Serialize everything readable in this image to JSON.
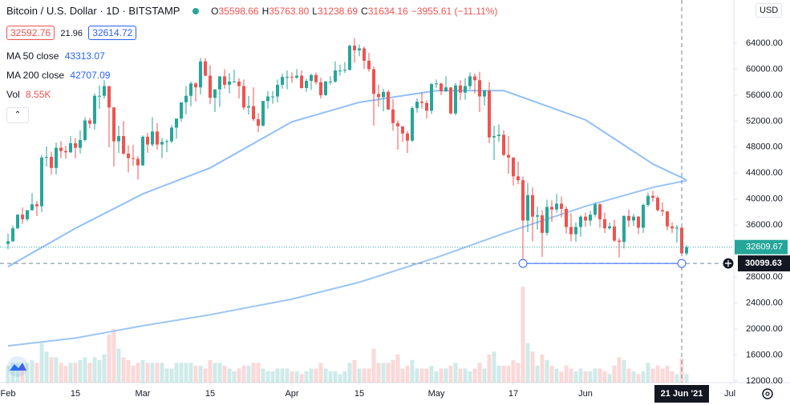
{
  "chart_data": {
    "type": "candlestick",
    "title": "Bitcoin / U.S. Dollar · 1D · BITSTAMP",
    "legend_ohlc": {
      "keys": [
        "O",
        "H",
        "L",
        "C"
      ],
      "labels": [
        "35598.66",
        "35763.80",
        "31238.69",
        "31634.16"
      ]
    },
    "legend_change": "−3955.61 (−11.11%)",
    "bid": 32592.76,
    "spread": 21.96,
    "ask": 32614.72,
    "volume_name": "Vol",
    "volume_label": "8.55K",
    "currency": "USD",
    "categories": [
      "2021-02-01",
      "2021-02-02",
      "2021-02-03",
      "2021-02-04",
      "2021-02-05",
      "2021-02-06",
      "2021-02-07",
      "2021-02-08",
      "2021-02-09",
      "2021-02-10",
      "2021-02-11",
      "2021-02-12",
      "2021-02-13",
      "2021-02-14",
      "2021-02-15",
      "2021-02-16",
      "2021-02-17",
      "2021-02-18",
      "2021-02-19",
      "2021-02-20",
      "2021-02-21",
      "2021-02-22",
      "2021-02-23",
      "2021-02-24",
      "2021-02-25",
      "2021-02-26",
      "2021-02-27",
      "2021-02-28",
      "2021-03-01",
      "2021-03-02",
      "2021-03-03",
      "2021-03-04",
      "2021-03-05",
      "2021-03-06",
      "2021-03-07",
      "2021-03-08",
      "2021-03-09",
      "2021-03-10",
      "2021-03-11",
      "2021-03-12",
      "2021-03-13",
      "2021-03-14",
      "2021-03-15",
      "2021-03-16",
      "2021-03-17",
      "2021-03-18",
      "2021-03-19",
      "2021-03-20",
      "2021-03-21",
      "2021-03-22",
      "2021-03-23",
      "2021-03-24",
      "2021-03-25",
      "2021-03-26",
      "2021-03-27",
      "2021-03-28",
      "2021-03-29",
      "2021-03-30",
      "2021-03-31",
      "2021-04-01",
      "2021-04-02",
      "2021-04-03",
      "2021-04-04",
      "2021-04-05",
      "2021-04-06",
      "2021-04-07",
      "2021-04-08",
      "2021-04-09",
      "2021-04-10",
      "2021-04-11",
      "2021-04-12",
      "2021-04-13",
      "2021-04-14",
      "2021-04-15",
      "2021-04-16",
      "2021-04-17",
      "2021-04-18",
      "2021-04-19",
      "2021-04-20",
      "2021-04-21",
      "2021-04-22",
      "2021-04-23",
      "2021-04-24",
      "2021-04-25",
      "2021-04-26",
      "2021-04-27",
      "2021-04-28",
      "2021-04-29",
      "2021-04-30",
      "2021-05-01",
      "2021-05-02",
      "2021-05-03",
      "2021-05-04",
      "2021-05-05",
      "2021-05-06",
      "2021-05-07",
      "2021-05-08",
      "2021-05-09",
      "2021-05-10",
      "2021-05-11",
      "2021-05-12",
      "2021-05-13",
      "2021-05-14",
      "2021-05-15",
      "2021-05-16",
      "2021-05-17",
      "2021-05-18",
      "2021-05-19",
      "2021-05-20",
      "2021-05-21",
      "2021-05-22",
      "2021-05-23",
      "2021-05-24",
      "2021-05-25",
      "2021-05-26",
      "2021-05-27",
      "2021-05-28",
      "2021-05-29",
      "2021-05-30",
      "2021-05-31",
      "2021-06-01",
      "2021-06-02",
      "2021-06-03",
      "2021-06-04",
      "2021-06-05",
      "2021-06-06",
      "2021-06-07",
      "2021-06-08",
      "2021-06-09",
      "2021-06-10",
      "2021-06-11",
      "2021-06-12",
      "2021-06-13",
      "2021-06-14",
      "2021-06-15",
      "2021-06-16",
      "2021-06-17",
      "2021-06-18",
      "2021-06-19",
      "2021-06-20",
      "2021-06-21",
      "2021-06-22"
    ],
    "open": [
      33100,
      33500,
      35500,
      37600,
      36900,
      38300,
      39200,
      38900,
      46400,
      46500,
      44800,
      47900,
      47400,
      47200,
      48600,
      47900,
      49100,
      52100,
      51600,
      55900,
      55900,
      57400,
      54100,
      48900,
      49700,
      47000,
      46300,
      46200,
      45200,
      49600,
      48400,
      50400,
      48400,
      48800,
      48900,
      51000,
      52400,
      54900,
      55900,
      57800,
      57200,
      61200,
      59000,
      55600,
      56900,
      58900,
      57600,
      58100,
      58100,
      57400,
      54100,
      54300,
      52300,
      51300,
      55100,
      55800,
      55800,
      57600,
      58800,
      58800,
      58700,
      59000,
      57100,
      58200,
      59100,
      58000,
      56000,
      58100,
      58100,
      59800,
      59800,
      59900,
      63600,
      62900,
      63200,
      61300,
      60000,
      56200,
      55700,
      56500,
      53800,
      51700,
      51200,
      50100,
      49000,
      54000,
      55000,
      54800,
      53600,
      57700,
      57800,
      56600,
      57200,
      53200,
      57500,
      56400,
      57400,
      58900,
      58300,
      55800,
      56700,
      49500,
      49700,
      49900,
      46800,
      46400,
      43500,
      42900,
      36700,
      40600,
      37300,
      37500,
      34800,
      38800,
      38400,
      39300,
      38500,
      35700,
      34600,
      35700,
      37300,
      36700,
      37600,
      39200,
      36900,
      35500,
      35800,
      33600,
      33400,
      37400,
      36700,
      37300,
      35600,
      39100,
      40500,
      40200,
      38300,
      38100,
      35800,
      35500,
      35598.66,
      31634.16
    ],
    "high": [
      34700,
      35900,
      37700,
      38700,
      38300,
      40900,
      39700,
      46800,
      48100,
      47300,
      48700,
      48900,
      48200,
      49700,
      49400,
      50600,
      52600,
      52500,
      56300,
      57500,
      58300,
      57400,
      54200,
      51300,
      52000,
      48300,
      48400,
      46600,
      49800,
      50200,
      52600,
      51700,
      49400,
      49200,
      51400,
      52400,
      54900,
      57400,
      58100,
      58000,
      61700,
      61700,
      60600,
      56900,
      58900,
      60000,
      59400,
      59900,
      58600,
      58400,
      55900,
      57200,
      53200,
      55100,
      56600,
      56600,
      58400,
      59300,
      59800,
      59500,
      60000,
      59800,
      58500,
      59300,
      59500,
      58700,
      58200,
      58900,
      61200,
      60700,
      61100,
      63800,
      64800,
      63800,
      63500,
      62500,
      60400,
      57600,
      57000,
      56800,
      55400,
      52100,
      51200,
      50500,
      54300,
      55500,
      56400,
      55200,
      57900,
      58400,
      57900,
      58900,
      57200,
      57900,
      58300,
      58600,
      59500,
      59300,
      59600,
      56800,
      58000,
      51300,
      51500,
      50600,
      49700,
      46400,
      45800,
      43500,
      42500,
      41800,
      38800,
      38300,
      39900,
      39800,
      40800,
      40400,
      38900,
      37800,
      36400,
      37500,
      37900,
      38200,
      39500,
      39300,
      37900,
      36400,
      36800,
      34000,
      37500,
      38400,
      37700,
      37400,
      39300,
      41000,
      41300,
      40500,
      39500,
      38200,
      36400,
      36000,
      35763.8,
      32900
    ],
    "low": [
      32300,
      33400,
      35400,
      36200,
      36600,
      38200,
      37400,
      38000,
      45000,
      43800,
      43800,
      46300,
      46200,
      47100,
      46300,
      47000,
      48900,
      50900,
      50700,
      53900,
      55500,
      48000,
      45000,
      47100,
      46800,
      44100,
      45100,
      43000,
      45100,
      47100,
      48100,
      47600,
      46300,
      47200,
      48600,
      49300,
      51900,
      53000,
      54300,
      55000,
      56100,
      58900,
      54600,
      53400,
      54200,
      57000,
      56300,
      57900,
      55500,
      53700,
      53000,
      52000,
      50300,
      51200,
      53900,
      54700,
      54900,
      57000,
      56900,
      57900,
      58500,
      57000,
      56500,
      56800,
      57600,
      55500,
      55900,
      57600,
      57900,
      59000,
      59400,
      59800,
      61000,
      62000,
      60000,
      59600,
      51300,
      54200,
      53500,
      53700,
      50500,
      47600,
      48800,
      47100,
      48800,
      53300,
      53900,
      52400,
      53100,
      57100,
      56000,
      56500,
      53000,
      52900,
      55200,
      55300,
      56900,
      56300,
      53400,
      54400,
      48600,
      46000,
      48800,
      46600,
      43900,
      42100,
      42300,
      30000,
      34900,
      33500,
      35300,
      31100,
      34400,
      36500,
      37900,
      37200,
      34700,
      33500,
      33400,
      34200,
      35700,
      35900,
      37200,
      35600,
      34800,
      35300,
      33400,
      31000,
      32400,
      35700,
      35900,
      34600,
      34800,
      38800,
      39600,
      38100,
      37400,
      35200,
      34800,
      33300,
      31238.69,
      31300
    ],
    "close": [
      33500,
      35500,
      37600,
      36900,
      38300,
      39200,
      38900,
      46400,
      46500,
      44800,
      47900,
      47400,
      47200,
      48600,
      47900,
      49100,
      52100,
      51600,
      55900,
      55900,
      57400,
      54100,
      48900,
      49700,
      47000,
      46300,
      46200,
      45200,
      49600,
      48400,
      50400,
      48400,
      48800,
      48900,
      51000,
      52400,
      54900,
      55900,
      57800,
      57200,
      61200,
      59000,
      55600,
      56900,
      58900,
      57600,
      58100,
      58100,
      57400,
      54100,
      54300,
      52300,
      51300,
      55100,
      55800,
      55800,
      57600,
      58800,
      58800,
      58700,
      59000,
      57100,
      58200,
      59100,
      58000,
      56000,
      58100,
      58100,
      59800,
      59800,
      59900,
      63600,
      62900,
      63200,
      61300,
      60000,
      56200,
      55700,
      56500,
      53800,
      51700,
      51200,
      50100,
      49000,
      54000,
      55000,
      54800,
      53600,
      57700,
      57800,
      56600,
      57200,
      53200,
      57500,
      56400,
      57400,
      58900,
      58300,
      55800,
      56700,
      49500,
      49700,
      49900,
      46800,
      46400,
      43500,
      42900,
      36700,
      40600,
      37300,
      37500,
      34800,
      38800,
      38400,
      39300,
      38500,
      35700,
      34600,
      35700,
      37300,
      36700,
      37600,
      39200,
      36900,
      35500,
      35800,
      33600,
      33400,
      37400,
      36700,
      37300,
      35600,
      39100,
      40500,
      40200,
      38300,
      38100,
      35800,
      35500,
      35598.66,
      31634.16,
      32609.67
    ],
    "volume": [
      6,
      7,
      7,
      6,
      7,
      8,
      7,
      14,
      11,
      9,
      9,
      7,
      6,
      7,
      7,
      8,
      9,
      7,
      9,
      8,
      10,
      17,
      19,
      12,
      9,
      8,
      6,
      7,
      8,
      7,
      7,
      7,
      7,
      5,
      5,
      7,
      7,
      7,
      7,
      6,
      6,
      5,
      8,
      7,
      7,
      6,
      5,
      4,
      5,
      6,
      6,
      7,
      7,
      5,
      4,
      4,
      5,
      5,
      5,
      4,
      4,
      3,
      4,
      5,
      5,
      7,
      5,
      4,
      4,
      3,
      4,
      7,
      8,
      5,
      5,
      5,
      12,
      7,
      7,
      7,
      8,
      10,
      5,
      6,
      8,
      5,
      5,
      5,
      6,
      4,
      5,
      5,
      6,
      7,
      5,
      5,
      4,
      5,
      7,
      5,
      10,
      11,
      6,
      6,
      6,
      8,
      7,
      34,
      14,
      11,
      6,
      10,
      8,
      6,
      5,
      4,
      6,
      5,
      4,
      5,
      4,
      4,
      5,
      5,
      4,
      3,
      6,
      9,
      8,
      5,
      4,
      3,
      4,
      7,
      5,
      6,
      5,
      6,
      4,
      3,
      8.55,
      3
    ],
    "volume_lim": [
      0,
      40
    ],
    "up_color": "#26a69a",
    "down_color": "#ef5350",
    "series": [
      {
        "name": "MA 50 close",
        "color": "#90bff9",
        "last": 43313.07,
        "x": [
          "2021-02-01",
          "2021-02-15",
          "2021-03-01",
          "2021-03-15",
          "2021-04-01",
          "2021-04-15",
          "2021-05-01",
          "2021-05-15",
          "2021-06-01",
          "2021-06-15",
          "2021-06-21",
          "2021-06-22"
        ],
        "values": [
          29600,
          35500,
          40800,
          44800,
          51900,
          54900,
          56700,
          56700,
          52200,
          45400,
          43313.07,
          42900
        ]
      },
      {
        "name": "MA 200 close",
        "color": "#9cc6f2",
        "last": 42707.09,
        "x": [
          "2021-02-01",
          "2021-02-15",
          "2021-03-01",
          "2021-03-15",
          "2021-04-01",
          "2021-04-15",
          "2021-05-01",
          "2021-05-15",
          "2021-06-01",
          "2021-06-15",
          "2021-06-21",
          "2021-06-22"
        ],
        "values": [
          17400,
          18600,
          20500,
          22200,
          24600,
          27200,
          31000,
          34700,
          38900,
          41800,
          42707.09,
          42800
        ]
      }
    ],
    "ylim": [
      11750,
      70650
    ],
    "yticks": [
      {
        "value": 12000,
        "label": "12000.00"
      },
      {
        "value": 16000,
        "label": "16000.00"
      },
      {
        "value": 20000,
        "label": "20000.00"
      },
      {
        "value": 24000,
        "label": "24000.00"
      },
      {
        "value": 28000,
        "label": "28000.00"
      },
      {
        "value": 32000,
        "label": "32000.00"
      },
      {
        "value": 36000,
        "label": "36000.00"
      },
      {
        "value": 40000,
        "label": "40000.00"
      },
      {
        "value": 44000,
        "label": "44000.00"
      },
      {
        "value": 48000,
        "label": "48000.00"
      },
      {
        "value": 52000,
        "label": "52000.00"
      },
      {
        "value": 56000,
        "label": "56000.00"
      },
      {
        "value": 60000,
        "label": "60000.00"
      },
      {
        "value": 64000,
        "label": "64000.00"
      }
    ],
    "xticks": [
      {
        "value": "2021-02-01",
        "label": "Feb"
      },
      {
        "value": "2021-02-15",
        "label": "15"
      },
      {
        "value": "2021-03-01",
        "label": "Mar"
      },
      {
        "value": "2021-03-15",
        "label": "15"
      },
      {
        "value": "2021-04-01",
        "label": "Apr"
      },
      {
        "value": "2021-04-15",
        "label": "15"
      },
      {
        "value": "2021-05-01",
        "label": "May"
      },
      {
        "value": "2021-05-17",
        "label": "17"
      },
      {
        "value": "2021-06-01",
        "label": "Jun"
      },
      {
        "value": "2021-07-01",
        "label": "Jul"
      }
    ],
    "grid": false,
    "last_price": 32609.67,
    "crosshair": {
      "x": "2021-06-21",
      "label": "21 Jun '21",
      "value": 30099.63
    },
    "drawing": {
      "x": [
        "2021-05-19",
        "2021-06-21"
      ],
      "value": 30099.63
    }
  }
}
